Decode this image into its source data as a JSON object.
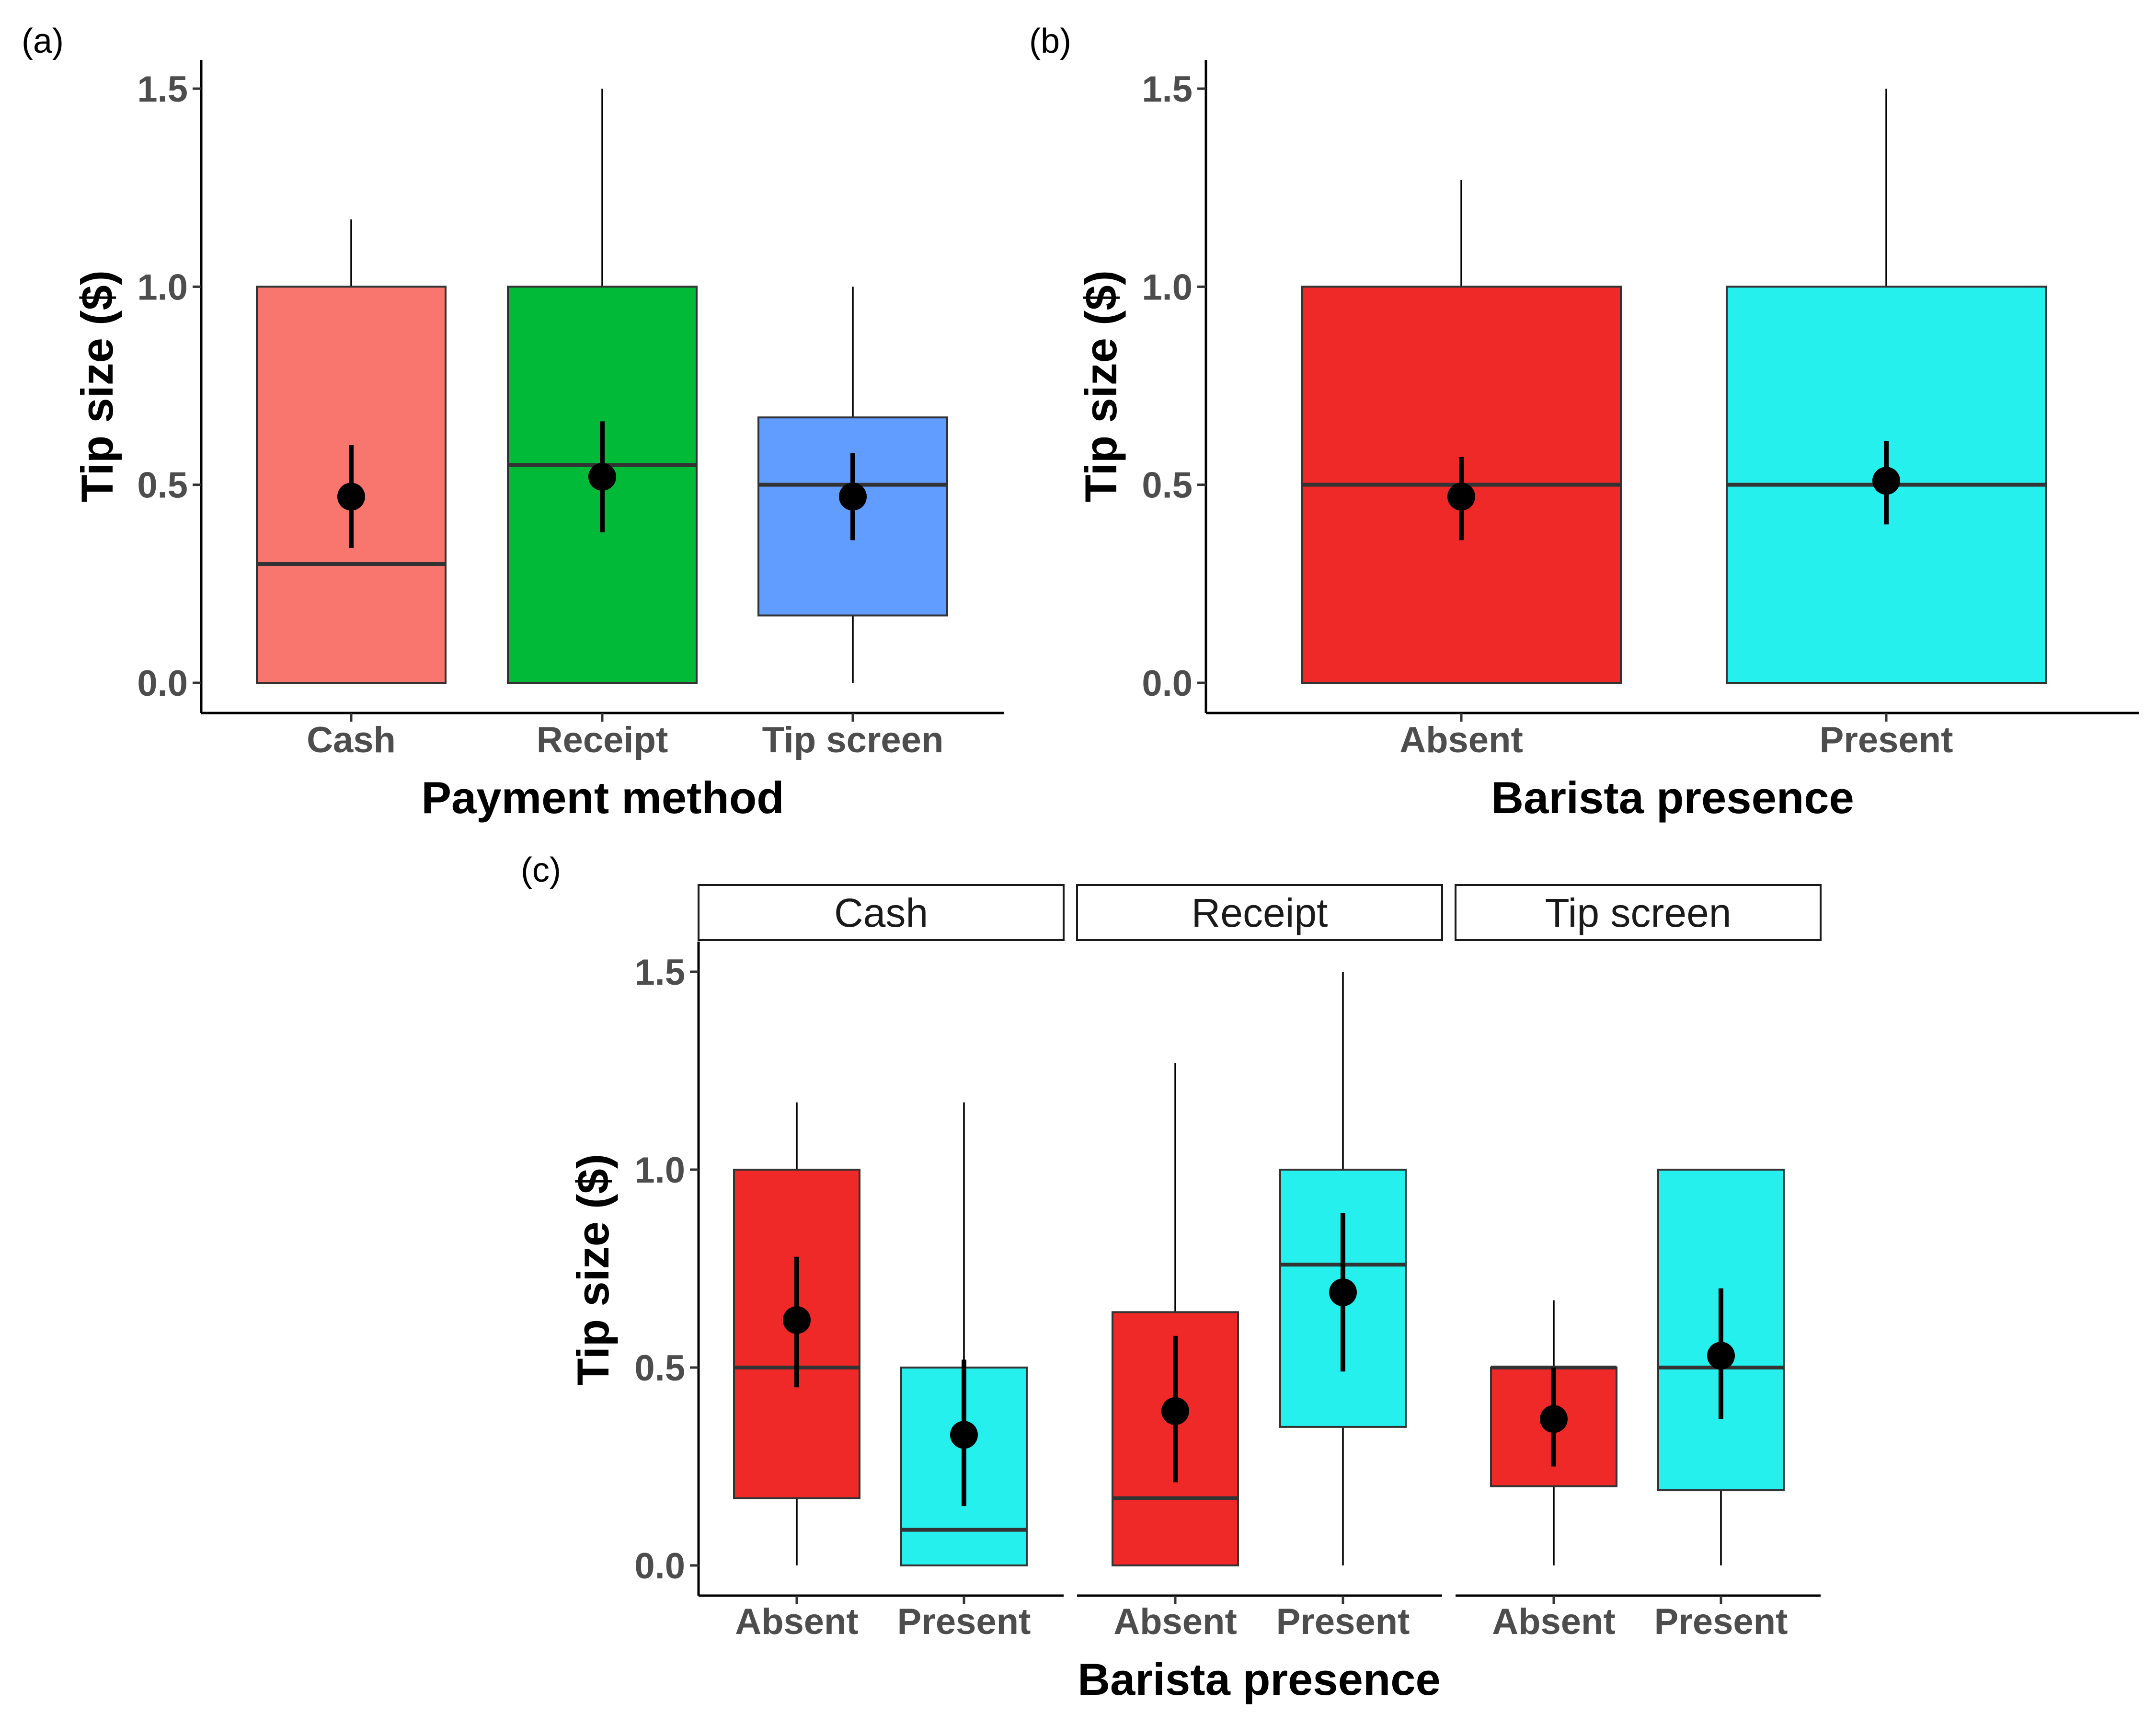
{
  "chart_data": [
    {
      "panel": "(a)",
      "type": "box",
      "xlabel": "Payment method",
      "ylabel": "Tip size ($)",
      "ylim": [
        0,
        1.5
      ],
      "yticks": [
        "0.0",
        "0.5",
        "1.0",
        "1.5"
      ],
      "categories": [
        "Cash",
        "Receipt",
        "Tip screen"
      ],
      "boxes": [
        {
          "category": "Cash",
          "color": "#F8766D",
          "whisker_low": 0,
          "q1": 0,
          "median": 0.3,
          "q3": 1.0,
          "whisker_high": 1.17,
          "mean": 0.47,
          "ci_low": 0.34,
          "ci_high": 0.6
        },
        {
          "category": "Receipt",
          "color": "#00BA38",
          "whisker_low": 0,
          "q1": 0,
          "median": 0.55,
          "q3": 1.0,
          "whisker_high": 1.5,
          "mean": 0.52,
          "ci_low": 0.38,
          "ci_high": 0.66
        },
        {
          "category": "Tip screen",
          "color": "#619CFF",
          "whisker_low": 0,
          "q1": 0.17,
          "median": 0.5,
          "q3": 0.67,
          "whisker_high": 1.0,
          "mean": 0.47,
          "ci_low": 0.36,
          "ci_high": 0.58
        }
      ]
    },
    {
      "panel": "(b)",
      "type": "box",
      "xlabel": "Barista presence",
      "ylabel": "Tip size ($)",
      "ylim": [
        0,
        1.5
      ],
      "yticks": [
        "0.0",
        "0.5",
        "1.0",
        "1.5"
      ],
      "categories": [
        "Absent",
        "Present"
      ],
      "boxes": [
        {
          "category": "Absent",
          "color": "#EF2828",
          "whisker_low": 0,
          "q1": 0,
          "median": 0.5,
          "q3": 1.0,
          "whisker_high": 1.27,
          "mean": 0.47,
          "ci_low": 0.36,
          "ci_high": 0.57
        },
        {
          "category": "Present",
          "color": "#25F0EE",
          "whisker_low": 0,
          "q1": 0,
          "median": 0.5,
          "q3": 1.0,
          "whisker_high": 1.5,
          "mean": 0.51,
          "ci_low": 0.4,
          "ci_high": 0.61
        }
      ]
    },
    {
      "panel": "(c)",
      "type": "box",
      "xlabel": "Barista presence",
      "ylabel": "Tip size ($)",
      "ylim": [
        0,
        1.5
      ],
      "yticks": [
        "0.0",
        "0.5",
        "1.0",
        "1.5"
      ],
      "facets": [
        {
          "strip": "Cash",
          "categories": [
            "Absent",
            "Present"
          ],
          "boxes": [
            {
              "category": "Absent",
              "color": "#EF2828",
              "whisker_low": 0,
              "q1": 0.17,
              "median": 0.5,
              "q3": 1.0,
              "whisker_high": 1.17,
              "mean": 0.62,
              "ci_low": 0.45,
              "ci_high": 0.78
            },
            {
              "category": "Present",
              "color": "#25F0EE",
              "whisker_low": 0,
              "q1": 0,
              "median": 0.09,
              "q3": 0.5,
              "whisker_high": 1.17,
              "mean": 0.33,
              "ci_low": 0.15,
              "ci_high": 0.52
            }
          ]
        },
        {
          "strip": "Receipt",
          "categories": [
            "Absent",
            "Present"
          ],
          "boxes": [
            {
              "category": "Absent",
              "color": "#EF2828",
              "whisker_low": 0,
              "q1": 0,
              "median": 0.17,
              "q3": 0.64,
              "whisker_high": 1.27,
              "mean": 0.39,
              "ci_low": 0.21,
              "ci_high": 0.58
            },
            {
              "category": "Present",
              "color": "#25F0EE",
              "whisker_low": 0,
              "q1": 0.35,
              "median": 0.76,
              "q3": 1.0,
              "whisker_high": 1.5,
              "mean": 0.69,
              "ci_low": 0.49,
              "ci_high": 0.89
            }
          ]
        },
        {
          "strip": "Tip screen",
          "categories": [
            "Absent",
            "Present"
          ],
          "boxes": [
            {
              "category": "Absent",
              "color": "#EF2828",
              "whisker_low": 0,
              "q1": 0.2,
              "median": 0.5,
              "q3": 0.5,
              "whisker_high": 0.67,
              "mean": 0.37,
              "ci_low": 0.25,
              "ci_high": 0.5
            },
            {
              "category": "Present",
              "color": "#25F0EE",
              "whisker_low": 0,
              "q1": 0.19,
              "median": 0.5,
              "q3": 1.0,
              "whisker_high": 1.0,
              "mean": 0.53,
              "ci_low": 0.37,
              "ci_high": 0.7
            }
          ]
        }
      ]
    }
  ]
}
